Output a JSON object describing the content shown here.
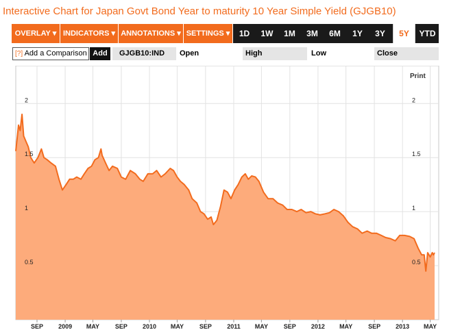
{
  "title": "Interactive Chart for Japan Govt Bond Year to maturity 10 Year Simple Yield (GJGB10)",
  "toolbar": {
    "menus": [
      "OVERLAY ▾",
      "INDICATORS ▾",
      "ANNOTATIONS ▾",
      "SETTINGS ▾"
    ],
    "ranges": [
      "1D",
      "1W",
      "1M",
      "3M",
      "6M",
      "1Y",
      "3Y",
      "5Y",
      "YTD"
    ],
    "active_range": "5Y"
  },
  "comparison": {
    "help": "[?]",
    "label": "Add a Comparison",
    "add_label": "Add"
  },
  "quote": {
    "ticker": "GJGB10:IND",
    "open_label": "Open",
    "high_label": "High",
    "low_label": "Low",
    "close_label": "Close"
  },
  "print_label": "Print",
  "colors": {
    "accent": "#f26b1d",
    "area_fill": "#fdab7b",
    "toolbar_bg": "#1a1a1a"
  },
  "chart_data": {
    "type": "area",
    "y_ticks": [
      "2",
      "1.5",
      "1",
      "0.5"
    ],
    "y_tick_values": [
      2,
      1.5,
      1,
      0.5
    ],
    "x_ticks": [
      "SEP",
      "2009",
      "MAY",
      "SEP",
      "2010",
      "MAY",
      "SEP",
      "2011",
      "MAY",
      "SEP",
      "2012",
      "MAY",
      "SEP",
      "2013",
      "MAY"
    ],
    "x_tick_dates": [
      "2008-09-01",
      "2009-01-01",
      "2009-05-01",
      "2009-09-01",
      "2010-01-01",
      "2010-05-01",
      "2010-09-01",
      "2011-01-01",
      "2011-05-01",
      "2011-09-01",
      "2012-01-01",
      "2012-05-01",
      "2012-09-01",
      "2013-01-01",
      "2013-05-01"
    ],
    "xlim": [
      "2008-06-01",
      "2013-05-20"
    ],
    "ylim": [
      0,
      2.35
    ],
    "grid": true,
    "x": [
      "2008-06-01",
      "2008-06-08",
      "2008-06-13",
      "2008-06-20",
      "2008-06-28",
      "2008-07-05",
      "2008-07-15",
      "2008-07-25",
      "2008-08-05",
      "2008-08-20",
      "2008-09-05",
      "2008-09-20",
      "2008-10-01",
      "2008-10-15",
      "2008-11-01",
      "2008-11-20",
      "2008-12-05",
      "2008-12-20",
      "2009-01-05",
      "2009-01-20",
      "2009-02-05",
      "2009-02-20",
      "2009-03-10",
      "2009-03-25",
      "2009-04-10",
      "2009-04-25",
      "2009-05-10",
      "2009-05-25",
      "2009-06-05",
      "2009-06-10",
      "2009-06-25",
      "2009-07-10",
      "2009-07-25",
      "2009-08-15",
      "2009-09-01",
      "2009-09-20",
      "2009-10-10",
      "2009-11-01",
      "2009-11-20",
      "2009-12-05",
      "2009-12-25",
      "2010-01-15",
      "2010-02-01",
      "2010-02-20",
      "2010-03-10",
      "2010-04-01",
      "2010-04-15",
      "2010-05-01",
      "2010-05-15",
      "2010-06-01",
      "2010-06-20",
      "2010-07-05",
      "2010-07-25",
      "2010-08-10",
      "2010-08-25",
      "2010-09-10",
      "2010-09-25",
      "2010-10-05",
      "2010-10-20",
      "2010-11-05",
      "2010-11-20",
      "2010-12-05",
      "2010-12-20",
      "2011-01-05",
      "2011-01-20",
      "2011-02-05",
      "2011-02-20",
      "2011-03-05",
      "2011-03-20",
      "2011-04-05",
      "2011-04-20",
      "2011-05-10",
      "2011-05-30",
      "2011-06-20",
      "2011-07-10",
      "2011-08-01",
      "2011-08-20",
      "2011-09-10",
      "2011-10-01",
      "2011-10-20",
      "2011-11-10",
      "2011-12-01",
      "2011-12-20",
      "2012-01-10",
      "2012-02-01",
      "2012-02-20",
      "2012-03-10",
      "2012-03-30",
      "2012-04-20",
      "2012-05-10",
      "2012-05-30",
      "2012-06-20",
      "2012-07-10",
      "2012-08-01",
      "2012-08-20",
      "2012-09-10",
      "2012-10-01",
      "2012-10-20",
      "2012-11-10",
      "2012-12-01",
      "2012-12-20",
      "2013-01-10",
      "2013-02-01",
      "2013-02-20",
      "2013-03-10",
      "2013-03-25",
      "2013-04-05",
      "2013-04-12",
      "2013-04-20",
      "2013-05-01",
      "2013-05-10",
      "2013-05-15",
      "2013-05-20"
    ],
    "values": [
      1.56,
      1.7,
      1.8,
      1.75,
      1.9,
      1.7,
      1.65,
      1.6,
      1.5,
      1.45,
      1.5,
      1.58,
      1.5,
      1.48,
      1.45,
      1.42,
      1.3,
      1.2,
      1.25,
      1.3,
      1.3,
      1.32,
      1.3,
      1.35,
      1.4,
      1.42,
      1.48,
      1.5,
      1.58,
      1.52,
      1.45,
      1.38,
      1.42,
      1.4,
      1.32,
      1.3,
      1.38,
      1.35,
      1.3,
      1.28,
      1.35,
      1.35,
      1.38,
      1.32,
      1.35,
      1.4,
      1.38,
      1.32,
      1.28,
      1.25,
      1.2,
      1.12,
      1.08,
      1.0,
      0.98,
      0.93,
      0.95,
      0.88,
      0.92,
      1.05,
      1.2,
      1.18,
      1.12,
      1.2,
      1.25,
      1.32,
      1.35,
      1.3,
      1.33,
      1.32,
      1.28,
      1.18,
      1.12,
      1.12,
      1.08,
      1.06,
      1.02,
      1.02,
      1.0,
      1.02,
      0.99,
      1.0,
      0.98,
      0.97,
      0.98,
      0.99,
      1.02,
      1.0,
      0.96,
      0.9,
      0.86,
      0.84,
      0.8,
      0.82,
      0.8,
      0.8,
      0.78,
      0.76,
      0.75,
      0.73,
      0.78,
      0.78,
      0.77,
      0.75,
      0.66,
      0.6,
      0.6,
      0.45,
      0.62,
      0.58,
      0.62,
      0.6,
      0.62
    ]
  }
}
